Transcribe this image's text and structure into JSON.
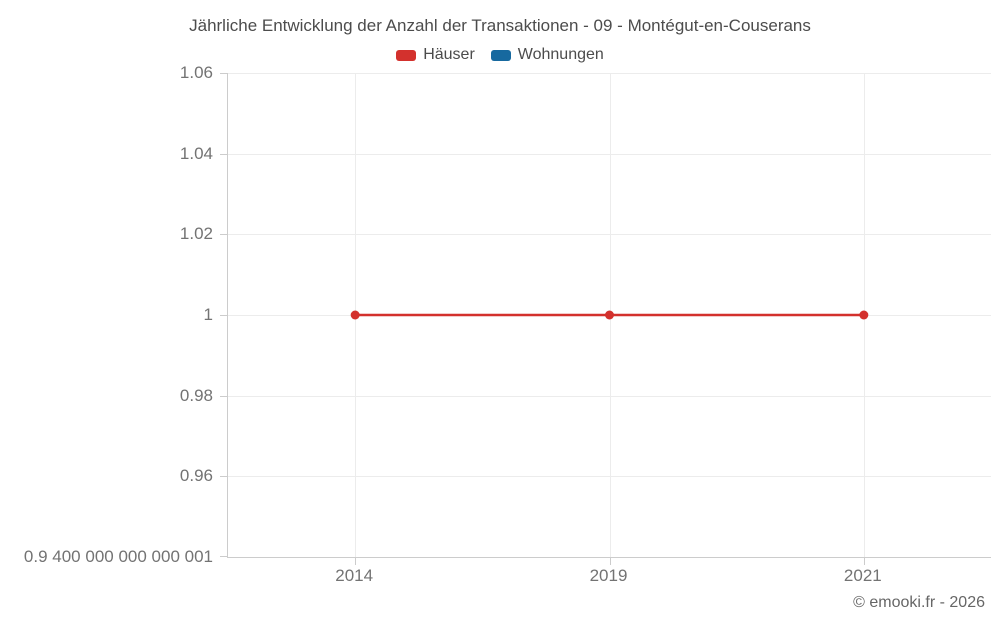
{
  "chart_data": {
    "type": "line",
    "title": "Jährliche Entwicklung der Anzahl der Transaktionen - 09 - Montégut-en-Couserans",
    "categories": [
      "2014",
      "2019",
      "2021"
    ],
    "series": [
      {
        "name": "Häuser",
        "color": "#d3312d",
        "values": [
          1,
          1,
          1
        ]
      },
      {
        "name": "Wohnungen",
        "color": "#17699f",
        "values": []
      }
    ],
    "ylim": [
      0.9400000000000001,
      1.06
    ],
    "yticks": [
      {
        "value": 1.06,
        "label": "1.06"
      },
      {
        "value": 1.04,
        "label": "1.04"
      },
      {
        "value": 1.02,
        "label": "1.02"
      },
      {
        "value": 1.0,
        "label": "1"
      },
      {
        "value": 0.98,
        "label": "0.98"
      },
      {
        "value": 0.96,
        "label": "0.96"
      },
      {
        "value": 0.9400000000000001,
        "label": "0.9 400 000 000 000 001"
      }
    ],
    "xlabel": "",
    "ylabel": "",
    "grid": true,
    "legend_position": "top"
  },
  "footer": {
    "copyright": "© emooki.fr - 2026"
  }
}
